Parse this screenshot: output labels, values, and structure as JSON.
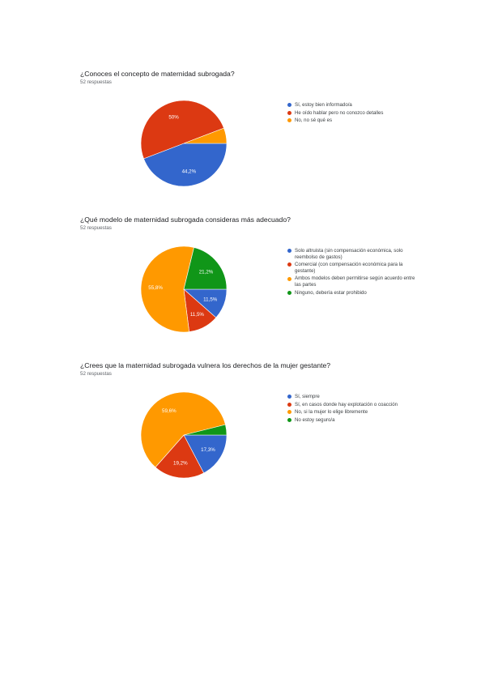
{
  "chart_data": [
    {
      "type": "pie",
      "title": "¿Conoces el concepto de maternidad subrogada?",
      "subtitle": "52 respuestas",
      "legend_position": "right",
      "labels": [
        "Sí, estoy bien informado/a",
        "He oído hablar pero no conozco detalles",
        "No, no sé qué es"
      ],
      "values": [
        44.2,
        50,
        5.8
      ],
      "value_labels": [
        "44,2%",
        "50%",
        ""
      ],
      "colors": [
        "#3366cc",
        "#dc3912",
        "#ff9900"
      ]
    },
    {
      "type": "pie",
      "title": "¿Qué modelo de maternidad subrogada consideras más adecuado?",
      "subtitle": "52 respuestas",
      "legend_position": "right",
      "labels": [
        "Solo altruista (sin compensación económica, solo reembolso de gastos)",
        "Comercial (con compensación económica para la gestante)",
        "Ambos modelos deben permitirse según acuerdo entre las partes",
        "Ninguno, debería estar prohibido"
      ],
      "values": [
        11.5,
        11.5,
        55.8,
        21.2
      ],
      "value_labels": [
        "11,5%",
        "11,5%",
        "55,8%",
        "21,2%"
      ],
      "colors": [
        "#3366cc",
        "#dc3912",
        "#ff9900",
        "#109618"
      ]
    },
    {
      "type": "pie",
      "title": "¿Crees que la maternidad subrogada vulnera los derechos de la mujer gestante?",
      "subtitle": "52 respuestas",
      "legend_position": "right",
      "labels": [
        "Sí, siempre",
        "Sí, en casos donde hay explotación o coacción",
        "No, si la mujer lo elige libremente",
        "No estoy seguro/a"
      ],
      "values": [
        17.3,
        19.2,
        59.6,
        3.9
      ],
      "value_labels": [
        "17,3%",
        "19,2%",
        "59,6%",
        ""
      ],
      "colors": [
        "#3366cc",
        "#dc3912",
        "#ff9900",
        "#109618"
      ]
    }
  ]
}
